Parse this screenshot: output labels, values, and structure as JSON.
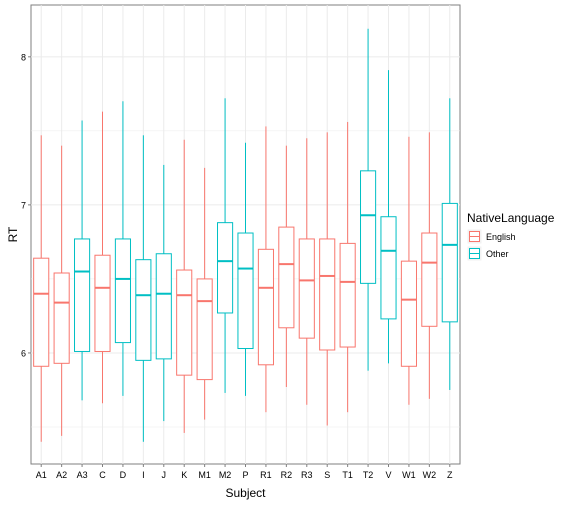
{
  "chart_data": {
    "type": "boxplot",
    "xlabel": "Subject",
    "ylabel": "RT",
    "ylim": [
      5.25,
      8.35
    ],
    "yticks": [
      6,
      7,
      8
    ],
    "grid": true,
    "legend": {
      "title": "NativeLanguage",
      "position": "right",
      "entries": [
        {
          "label": "English",
          "color": "#F8766D"
        },
        {
          "label": "Other",
          "color": "#00BFC4"
        }
      ]
    },
    "categories": [
      "A1",
      "A2",
      "A3",
      "C",
      "D",
      "I",
      "J",
      "K",
      "M1",
      "M2",
      "P",
      "R1",
      "R2",
      "R3",
      "S",
      "T1",
      "T2",
      "V",
      "W1",
      "W2",
      "Z"
    ],
    "boxes": [
      {
        "subject": "A1",
        "group": "English",
        "lower_whisker": 5.4,
        "q1": 5.91,
        "median": 6.4,
        "q3": 6.64,
        "upper_whisker": 7.47
      },
      {
        "subject": "A2",
        "group": "English",
        "lower_whisker": 5.44,
        "q1": 5.93,
        "median": 6.34,
        "q3": 6.54,
        "upper_whisker": 7.4
      },
      {
        "subject": "A3",
        "group": "Other",
        "lower_whisker": 5.68,
        "q1": 6.01,
        "median": 6.55,
        "q3": 6.77,
        "upper_whisker": 7.57
      },
      {
        "subject": "C",
        "group": "English",
        "lower_whisker": 5.66,
        "q1": 6.01,
        "median": 6.44,
        "q3": 6.66,
        "upper_whisker": 7.63
      },
      {
        "subject": "D",
        "group": "Other",
        "lower_whisker": 5.71,
        "q1": 6.07,
        "median": 6.5,
        "q3": 6.77,
        "upper_whisker": 7.7
      },
      {
        "subject": "I",
        "group": "Other",
        "lower_whisker": 5.4,
        "q1": 5.95,
        "median": 6.39,
        "q3": 6.63,
        "upper_whisker": 7.47
      },
      {
        "subject": "J",
        "group": "Other",
        "lower_whisker": 5.54,
        "q1": 5.96,
        "median": 6.4,
        "q3": 6.67,
        "upper_whisker": 7.27
      },
      {
        "subject": "K",
        "group": "English",
        "lower_whisker": 5.46,
        "q1": 5.85,
        "median": 6.39,
        "q3": 6.56,
        "upper_whisker": 7.44
      },
      {
        "subject": "M1",
        "group": "English",
        "lower_whisker": 5.55,
        "q1": 5.82,
        "median": 6.35,
        "q3": 6.5,
        "upper_whisker": 7.25
      },
      {
        "subject": "M2",
        "group": "Other",
        "lower_whisker": 5.73,
        "q1": 6.27,
        "median": 6.62,
        "q3": 6.88,
        "upper_whisker": 7.72
      },
      {
        "subject": "P",
        "group": "Other",
        "lower_whisker": 5.71,
        "q1": 6.03,
        "median": 6.57,
        "q3": 6.81,
        "upper_whisker": 7.42
      },
      {
        "subject": "R1",
        "group": "English",
        "lower_whisker": 5.6,
        "q1": 5.92,
        "median": 6.44,
        "q3": 6.7,
        "upper_whisker": 7.53
      },
      {
        "subject": "R2",
        "group": "English",
        "lower_whisker": 5.77,
        "q1": 6.17,
        "median": 6.6,
        "q3": 6.85,
        "upper_whisker": 7.4
      },
      {
        "subject": "R3",
        "group": "English",
        "lower_whisker": 5.65,
        "q1": 6.1,
        "median": 6.49,
        "q3": 6.77,
        "upper_whisker": 7.45
      },
      {
        "subject": "S",
        "group": "English",
        "lower_whisker": 5.51,
        "q1": 6.02,
        "median": 6.52,
        "q3": 6.77,
        "upper_whisker": 7.49
      },
      {
        "subject": "T1",
        "group": "English",
        "lower_whisker": 5.6,
        "q1": 6.04,
        "median": 6.48,
        "q3": 6.74,
        "upper_whisker": 7.56
      },
      {
        "subject": "T2",
        "group": "Other",
        "lower_whisker": 5.88,
        "q1": 6.47,
        "median": 6.93,
        "q3": 7.23,
        "upper_whisker": 8.19
      },
      {
        "subject": "V",
        "group": "Other",
        "lower_whisker": 5.93,
        "q1": 6.23,
        "median": 6.69,
        "q3": 6.92,
        "upper_whisker": 7.91
      },
      {
        "subject": "W1",
        "group": "English",
        "lower_whisker": 5.65,
        "q1": 5.91,
        "median": 6.36,
        "q3": 6.62,
        "upper_whisker": 7.46
      },
      {
        "subject": "W2",
        "group": "English",
        "lower_whisker": 5.69,
        "q1": 6.18,
        "median": 6.61,
        "q3": 6.81,
        "upper_whisker": 7.49
      },
      {
        "subject": "Z",
        "group": "Other",
        "lower_whisker": 5.75,
        "q1": 6.21,
        "median": 6.73,
        "q3": 7.01,
        "upper_whisker": 7.72
      }
    ]
  }
}
